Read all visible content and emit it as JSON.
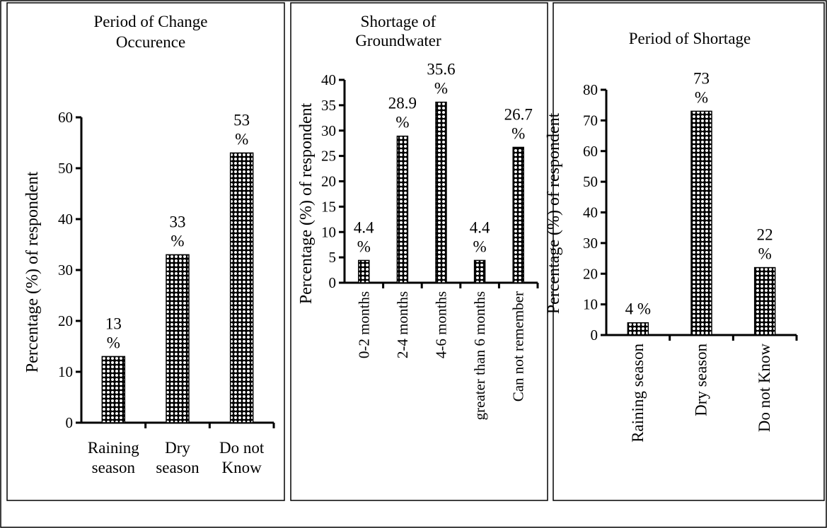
{
  "chart_data": [
    {
      "type": "bar",
      "title": "Period of Change Occurence",
      "title_lines": [
        "Period of Change",
        "Occurence"
      ],
      "ylabel": "Percentage (%) of respondent",
      "categories": [
        "Raining season",
        "Dry season",
        "Do not Know"
      ],
      "category_lines": [
        [
          "Raining",
          "season"
        ],
        [
          "Dry",
          "season"
        ],
        [
          "Do not",
          "Know"
        ]
      ],
      "values": [
        13,
        33,
        53
      ],
      "value_labels": [
        [
          "13",
          "%"
        ],
        [
          "33",
          "%"
        ],
        [
          "53",
          "%"
        ]
      ],
      "ylim": [
        0,
        60
      ],
      "yticks": [
        "0",
        "10",
        "20",
        "30",
        "40",
        "50",
        "60"
      ],
      "grid": false,
      "legend": "none"
    },
    {
      "type": "bar",
      "title": "Shortage of Groundwater",
      "title_lines": [
        "Shortage of",
        "Groundwater"
      ],
      "ylabel": "Percentage (%) of respondent",
      "categories": [
        "0-2 months",
        "2-4 months",
        "4-6 months",
        "greater than 6 months",
        "Can not remember"
      ],
      "values": [
        4.4,
        28.9,
        35.6,
        4.4,
        26.7
      ],
      "value_labels": [
        [
          "4.4",
          "%"
        ],
        [
          "28.9",
          "%"
        ],
        [
          "35.6",
          "%"
        ],
        [
          "4.4",
          "%"
        ],
        [
          "26.7",
          "%"
        ]
      ],
      "ylim": [
        0,
        40
      ],
      "yticks": [
        "0",
        "5",
        "10",
        "15",
        "20",
        "25",
        "30",
        "35",
        "40"
      ],
      "grid": false,
      "legend": "none"
    },
    {
      "type": "bar",
      "title": "Period of Shortage",
      "title_lines": [
        "Period of Shortage"
      ],
      "ylabel": "Percentage (%) of respondent",
      "categories": [
        "Raining season",
        "Dry season",
        "Do not Know"
      ],
      "values": [
        4,
        73,
        22
      ],
      "value_labels": [
        [
          "4 %"
        ],
        [
          "73",
          "%"
        ],
        [
          "22",
          "%"
        ]
      ],
      "ylim": [
        0,
        80
      ],
      "yticks": [
        "0",
        "10",
        "20",
        "30",
        "40",
        "50",
        "60",
        "70",
        "80"
      ],
      "grid": false,
      "legend": "none"
    }
  ],
  "colors": {
    "bar_fill": "#000000",
    "bar_dots": "#ffffff",
    "axis": "#000000"
  }
}
